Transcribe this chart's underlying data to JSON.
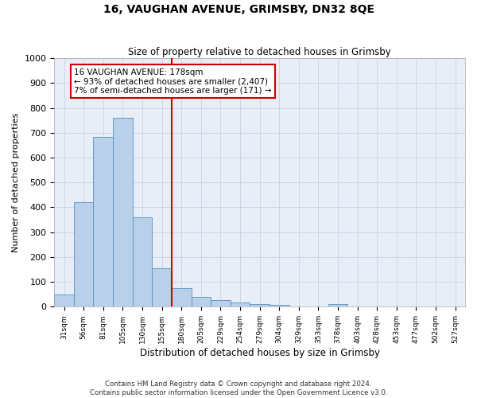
{
  "title": "16, VAUGHAN AVENUE, GRIMSBY, DN32 8QE",
  "subtitle": "Size of property relative to detached houses in Grimsby",
  "xlabel": "Distribution of detached houses by size in Grimsby",
  "ylabel": "Number of detached properties",
  "bar_labels": [
    "31sqm",
    "56sqm",
    "81sqm",
    "105sqm",
    "130sqm",
    "155sqm",
    "180sqm",
    "205sqm",
    "229sqm",
    "254sqm",
    "279sqm",
    "304sqm",
    "329sqm",
    "353sqm",
    "378sqm",
    "403sqm",
    "428sqm",
    "453sqm",
    "477sqm",
    "502sqm",
    "527sqm"
  ],
  "bar_values": [
    50,
    420,
    685,
    760,
    360,
    155,
    75,
    40,
    27,
    18,
    10,
    8,
    0,
    0,
    10,
    0,
    0,
    0,
    0,
    0,
    0
  ],
  "bar_color": "#b8d0ea",
  "bar_edge_color": "#5a8fc0",
  "vline_index": 6,
  "vline_color": "#cc0000",
  "annotation_text": "16 VAUGHAN AVENUE: 178sqm\n← 93% of detached houses are smaller (2,407)\n7% of semi-detached houses are larger (171) →",
  "annotation_box_color": "#ffffff",
  "annotation_box_edgecolor": "#cc0000",
  "ylim": [
    0,
    1000
  ],
  "yticks": [
    0,
    100,
    200,
    300,
    400,
    500,
    600,
    700,
    800,
    900,
    1000
  ],
  "footer_text": "Contains HM Land Registry data © Crown copyright and database right 2024.\nContains public sector information licensed under the Open Government Licence v3.0.",
  "grid_color": "#ccd6e8",
  "bg_color": "#e8eef8"
}
